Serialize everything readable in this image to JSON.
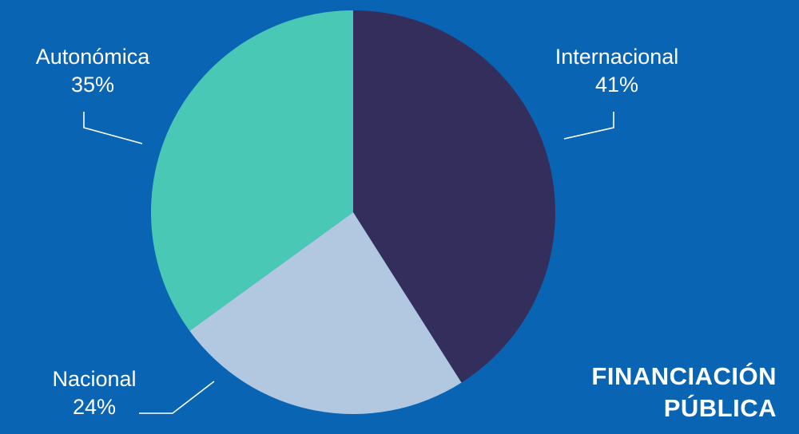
{
  "chart_data": {
    "type": "pie",
    "title": [
      "FINANCIACIÓN",
      "PÚBLICA"
    ],
    "slices": [
      {
        "name": "Internacional",
        "value": 41,
        "label": "41%",
        "color": "#332e5c"
      },
      {
        "name": "Nacional",
        "value": 24,
        "label": "24%",
        "color": "#b1c8e0"
      },
      {
        "name": "Autonómica",
        "value": 35,
        "label": "35%",
        "color": "#4ac8b6"
      }
    ],
    "start_angle": "12 o'clock",
    "direction": "clockwise",
    "background_color": "#0a64b4",
    "leader_line_color": "#ffffff"
  }
}
